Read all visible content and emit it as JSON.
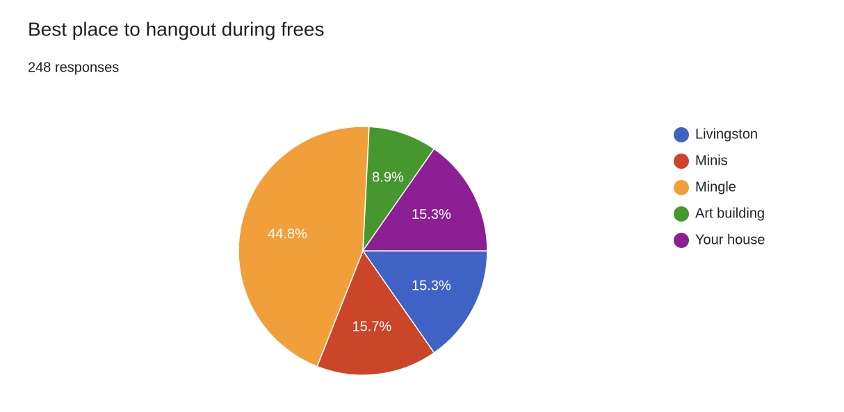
{
  "chart_data": {
    "type": "pie",
    "title": "Best place to hangout during frees",
    "subtitle": "248 responses",
    "categories": [
      "Livingston",
      "Minis",
      "Mingle",
      "Art building",
      "Your house"
    ],
    "values": [
      15.3,
      15.7,
      44.8,
      8.9,
      15.3
    ],
    "value_labels": [
      "15.3%",
      "15.7%",
      "44.8%",
      "8.9%",
      "15.3%"
    ],
    "colors": [
      "#3f63c5",
      "#cb4528",
      "#f09f3a",
      "#47972f",
      "#8d1f95"
    ],
    "legend": "right"
  }
}
